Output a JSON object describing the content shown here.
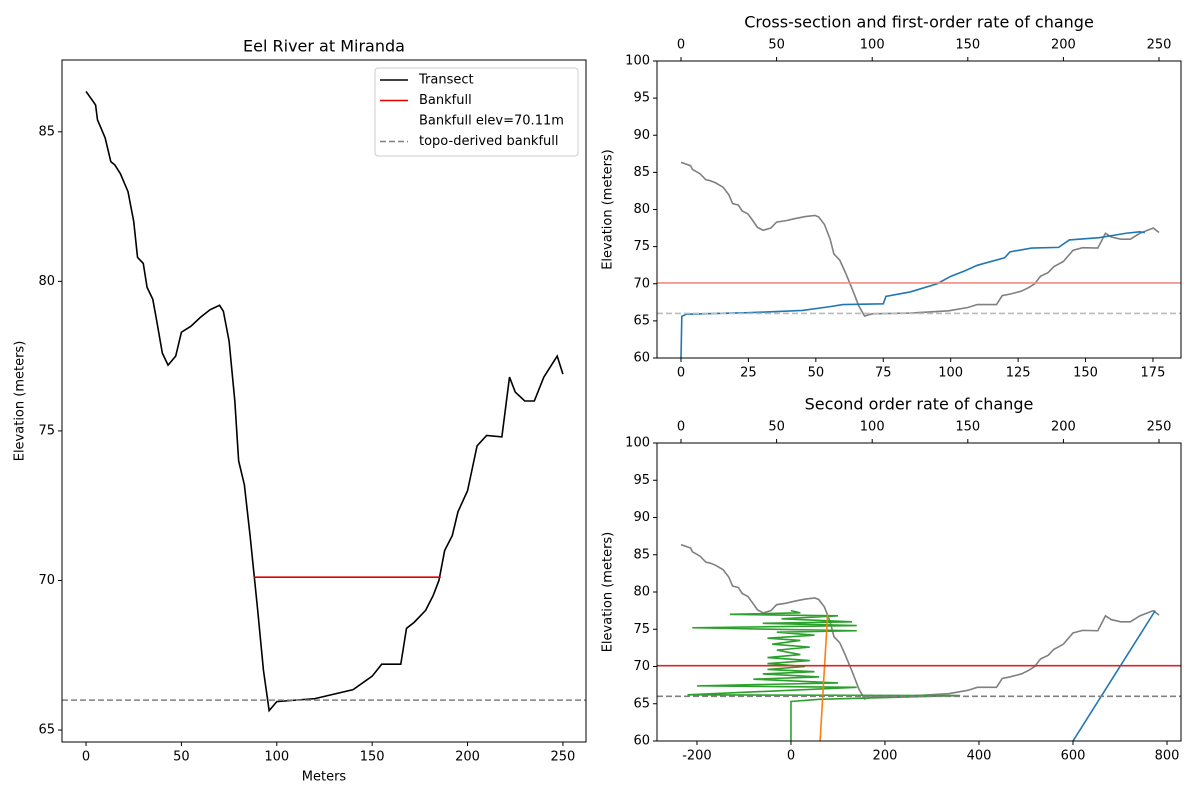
{
  "chart_data": [
    {
      "type": "line",
      "title": "Eel River at Miranda",
      "xlabel": "Meters",
      "ylabel": "Elevation (meters)",
      "xlim": [
        -12.6,
        262.1
      ],
      "xticks": [
        0,
        50,
        100,
        150,
        200,
        250
      ],
      "ylim": [
        64.6,
        87.4
      ],
      "yticks": [
        65,
        70,
        75,
        80,
        85
      ],
      "legend": "upper right",
      "series": [
        {
          "name": "Transect",
          "color": "#000000",
          "x": [
            0,
            5,
            6,
            10,
            13,
            15,
            18,
            22,
            25,
            27,
            30,
            32,
            35,
            37,
            40,
            43,
            47,
            50,
            55,
            60,
            65,
            70,
            72,
            75,
            78,
            80,
            83,
            86,
            90,
            93,
            96,
            100,
            110,
            120,
            130,
            140,
            150,
            155,
            160,
            165,
            168,
            172,
            178,
            182,
            185,
            188,
            192,
            195,
            200,
            205,
            210,
            218,
            222,
            225,
            230,
            235,
            240,
            245,
            247,
            250
          ],
          "values": [
            86.35,
            85.9,
            85.4,
            84.8,
            84.0,
            83.9,
            83.6,
            83.0,
            82.0,
            80.8,
            80.6,
            79.8,
            79.4,
            78.7,
            77.6,
            77.2,
            77.5,
            78.3,
            78.5,
            78.8,
            79.05,
            79.2,
            79.0,
            78.0,
            76.0,
            74.0,
            73.2,
            71.5,
            69.0,
            67.0,
            65.65,
            65.95,
            66.0,
            66.05,
            66.2,
            66.35,
            66.8,
            67.2,
            67.2,
            67.2,
            68.4,
            68.6,
            69.0,
            69.5,
            70.0,
            71.0,
            71.5,
            72.3,
            73.0,
            74.5,
            74.85,
            74.8,
            76.8,
            76.3,
            76.0,
            76.0,
            76.8,
            77.3,
            77.5,
            76.9
          ]
        },
        {
          "name": "Bankfull",
          "color": "#e00000",
          "x": [
            88,
            186
          ],
          "values": [
            70.11,
            70.11
          ]
        },
        {
          "name": "Bankfull elev=70.11m",
          "color": "none"
        },
        {
          "name": "topo-derived bankfull",
          "color": "#808080",
          "style": "dashed",
          "hline": 66
        }
      ]
    },
    {
      "type": "line",
      "title": "Cross-section and first-order rate of change",
      "ylabel": "Elevation (meters)",
      "xlim": [
        -8.9,
        185.4
      ],
      "xticks": [
        0,
        25,
        50,
        75,
        100,
        125,
        150,
        175
      ],
      "x2lim": [
        -12.55,
        261.5
      ],
      "x2ticks": [
        0,
        50,
        100,
        150,
        200,
        250
      ],
      "ylim": [
        60,
        100
      ],
      "yticks": [
        60,
        65,
        70,
        75,
        80,
        85,
        90,
        95,
        100
      ],
      "series": [
        {
          "color": "#808080",
          "xaxis": "x2",
          "x": [
            0,
            5,
            6,
            10,
            13,
            15,
            18,
            22,
            25,
            27,
            30,
            32,
            35,
            37,
            40,
            43,
            47,
            50,
            55,
            60,
            65,
            70,
            72,
            75,
            78,
            80,
            83,
            86,
            90,
            93,
            96,
            100,
            110,
            120,
            130,
            140,
            150,
            155,
            160,
            165,
            168,
            172,
            178,
            182,
            185,
            188,
            192,
            195,
            200,
            205,
            210,
            218,
            222,
            225,
            230,
            235,
            240,
            245,
            247,
            250
          ],
          "values": [
            86.35,
            85.9,
            85.4,
            84.8,
            84.0,
            83.9,
            83.6,
            83.0,
            82.0,
            80.8,
            80.6,
            79.8,
            79.4,
            78.7,
            77.6,
            77.2,
            77.5,
            78.3,
            78.5,
            78.8,
            79.05,
            79.2,
            79.0,
            78.0,
            76.0,
            74.0,
            73.2,
            71.5,
            69.0,
            67.0,
            65.65,
            65.95,
            66.0,
            66.05,
            66.2,
            66.35,
            66.8,
            67.2,
            67.2,
            67.2,
            68.4,
            68.6,
            69.0,
            69.5,
            70.0,
            71.0,
            71.5,
            72.3,
            73.0,
            74.5,
            74.85,
            74.8,
            76.8,
            76.3,
            76.0,
            76.0,
            76.8,
            77.3,
            77.5,
            76.9
          ]
        },
        {
          "color": "#1f77b4",
          "x": [
            0,
            0.3,
            2,
            25,
            45,
            55,
            60,
            75,
            76,
            85,
            95,
            100,
            105,
            110,
            120,
            122,
            130,
            140,
            144,
            155,
            160,
            165,
            170,
            172
          ],
          "values": [
            60,
            65.6,
            65.9,
            66.1,
            66.4,
            66.9,
            67.2,
            67.3,
            68.3,
            68.9,
            70.0,
            71.0,
            71.7,
            72.5,
            73.5,
            74.3,
            74.8,
            74.9,
            75.9,
            76.2,
            76.5,
            76.8,
            77.0,
            76.9
          ]
        },
        {
          "color": "#f28b82",
          "hline": 70.11
        },
        {
          "color": "#bbbbbb",
          "style": "dashed",
          "hline": 66
        }
      ]
    },
    {
      "type": "line",
      "title": "Second order rate of change",
      "ylabel": "Elevation (meters)",
      "xlim": [
        -285,
        829.8
      ],
      "xticks": [
        -200,
        0,
        200,
        400,
        600,
        800
      ],
      "x2lim": [
        -12.55,
        261.5
      ],
      "x2ticks": [
        0,
        50,
        100,
        150,
        200,
        250
      ],
      "ylim": [
        60,
        100
      ],
      "yticks": [
        60,
        65,
        70,
        75,
        80,
        85,
        90,
        95,
        100
      ],
      "series": [
        {
          "color": "#808080",
          "xaxis": "x2",
          "x": [
            0,
            5,
            6,
            10,
            13,
            15,
            18,
            22,
            25,
            27,
            30,
            32,
            35,
            37,
            40,
            43,
            47,
            50,
            55,
            60,
            65,
            70,
            72,
            75,
            78,
            80,
            83,
            86,
            90,
            93,
            96,
            100,
            110,
            120,
            130,
            140,
            150,
            155,
            160,
            165,
            168,
            172,
            178,
            182,
            185,
            188,
            192,
            195,
            200,
            205,
            210,
            218,
            222,
            225,
            230,
            235,
            240,
            245,
            247,
            250
          ],
          "values": [
            86.35,
            85.9,
            85.4,
            84.8,
            84.0,
            83.9,
            83.6,
            83.0,
            82.0,
            80.8,
            80.6,
            79.8,
            79.4,
            78.7,
            77.6,
            77.2,
            77.5,
            78.3,
            78.5,
            78.8,
            79.05,
            79.2,
            79.0,
            78.0,
            76.0,
            74.0,
            73.2,
            71.5,
            69.0,
            67.0,
            65.65,
            65.95,
            66.0,
            66.05,
            66.2,
            66.35,
            66.8,
            67.2,
            67.2,
            67.2,
            68.4,
            68.6,
            69.0,
            69.5,
            70.0,
            71.0,
            71.5,
            72.3,
            73.0,
            74.5,
            74.85,
            74.8,
            76.8,
            76.3,
            76.0,
            76.0,
            76.8,
            77.3,
            77.5,
            76.9
          ]
        },
        {
          "color": "#2ca02c",
          "x": [
            0,
            0,
            60,
            360,
            -220,
            140,
            -200,
            100,
            -80,
            60,
            -60,
            50,
            -50,
            30,
            -50,
            40,
            -50,
            20,
            -30,
            40,
            -40,
            20,
            -50,
            50,
            -30,
            140,
            -210,
            140,
            -60,
            130,
            -20,
            100,
            -130,
            20,
            0
          ],
          "values": [
            60,
            65.3,
            65.6,
            66.1,
            66.2,
            67.2,
            67.4,
            67.8,
            68.3,
            68.6,
            69.0,
            69.3,
            69.6,
            70.0,
            70.4,
            70.8,
            71.2,
            71.6,
            72.2,
            72.6,
            73.0,
            73.5,
            73.8,
            74.2,
            74.6,
            74.8,
            75.2,
            75.5,
            75.8,
            76.0,
            76.4,
            76.8,
            77.0,
            77.2,
            77.5
          ]
        },
        {
          "color": "#ff7f0e",
          "x": [
            62,
            78
          ],
          "values": [
            60,
            77
          ]
        },
        {
          "color": "#1f77b4",
          "x": [
            600,
            775
          ],
          "values": [
            60,
            77.5
          ]
        },
        {
          "color": "#d62728",
          "hline": 70.11
        },
        {
          "color": "#808080",
          "style": "dashed",
          "hline": 66
        }
      ]
    }
  ]
}
